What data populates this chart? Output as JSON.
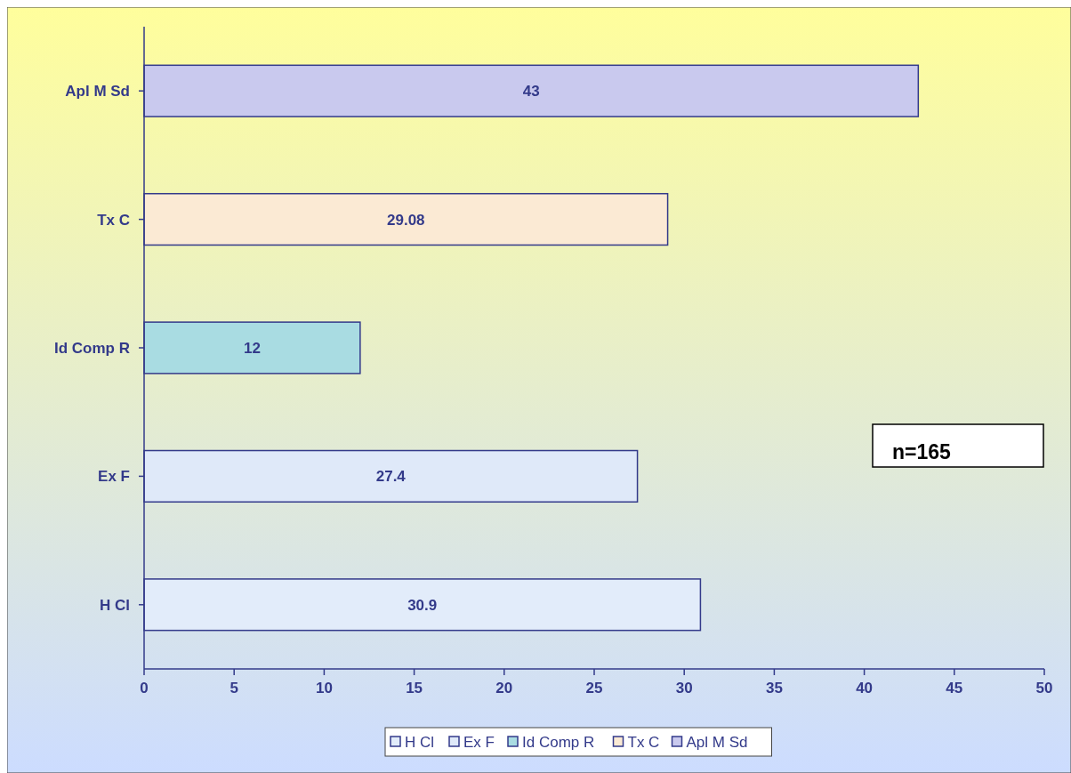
{
  "chart_data": {
    "type": "bar",
    "orientation": "horizontal",
    "categories": [
      "Apl M Sd",
      "Tx C",
      "Id Comp R",
      "Ex F",
      "H Cl"
    ],
    "series": [
      {
        "name": "H Cl",
        "color": "#e2ecfa",
        "values": [
          null,
          null,
          null,
          null,
          30.9
        ]
      },
      {
        "name": "Ex F",
        "color": "#dfe9f9",
        "values": [
          null,
          null,
          null,
          27.4,
          null
        ]
      },
      {
        "name": "Id Comp R",
        "color": "#a9dce2",
        "values": [
          null,
          null,
          12,
          null,
          null
        ]
      },
      {
        "name": "Tx C",
        "color": "#fbead4",
        "values": [
          null,
          29.08,
          null,
          null,
          null
        ]
      },
      {
        "name": "Apl M Sd",
        "color": "#c9c9ee",
        "values": [
          43,
          null,
          null,
          null,
          null
        ]
      }
    ],
    "xlim": [
      0,
      50
    ],
    "xticks": [
      0,
      5,
      10,
      15,
      20,
      25,
      30,
      35,
      40,
      45,
      50
    ],
    "data_labels": true,
    "legend": "bottom",
    "annotations": [
      "n=165"
    ]
  }
}
